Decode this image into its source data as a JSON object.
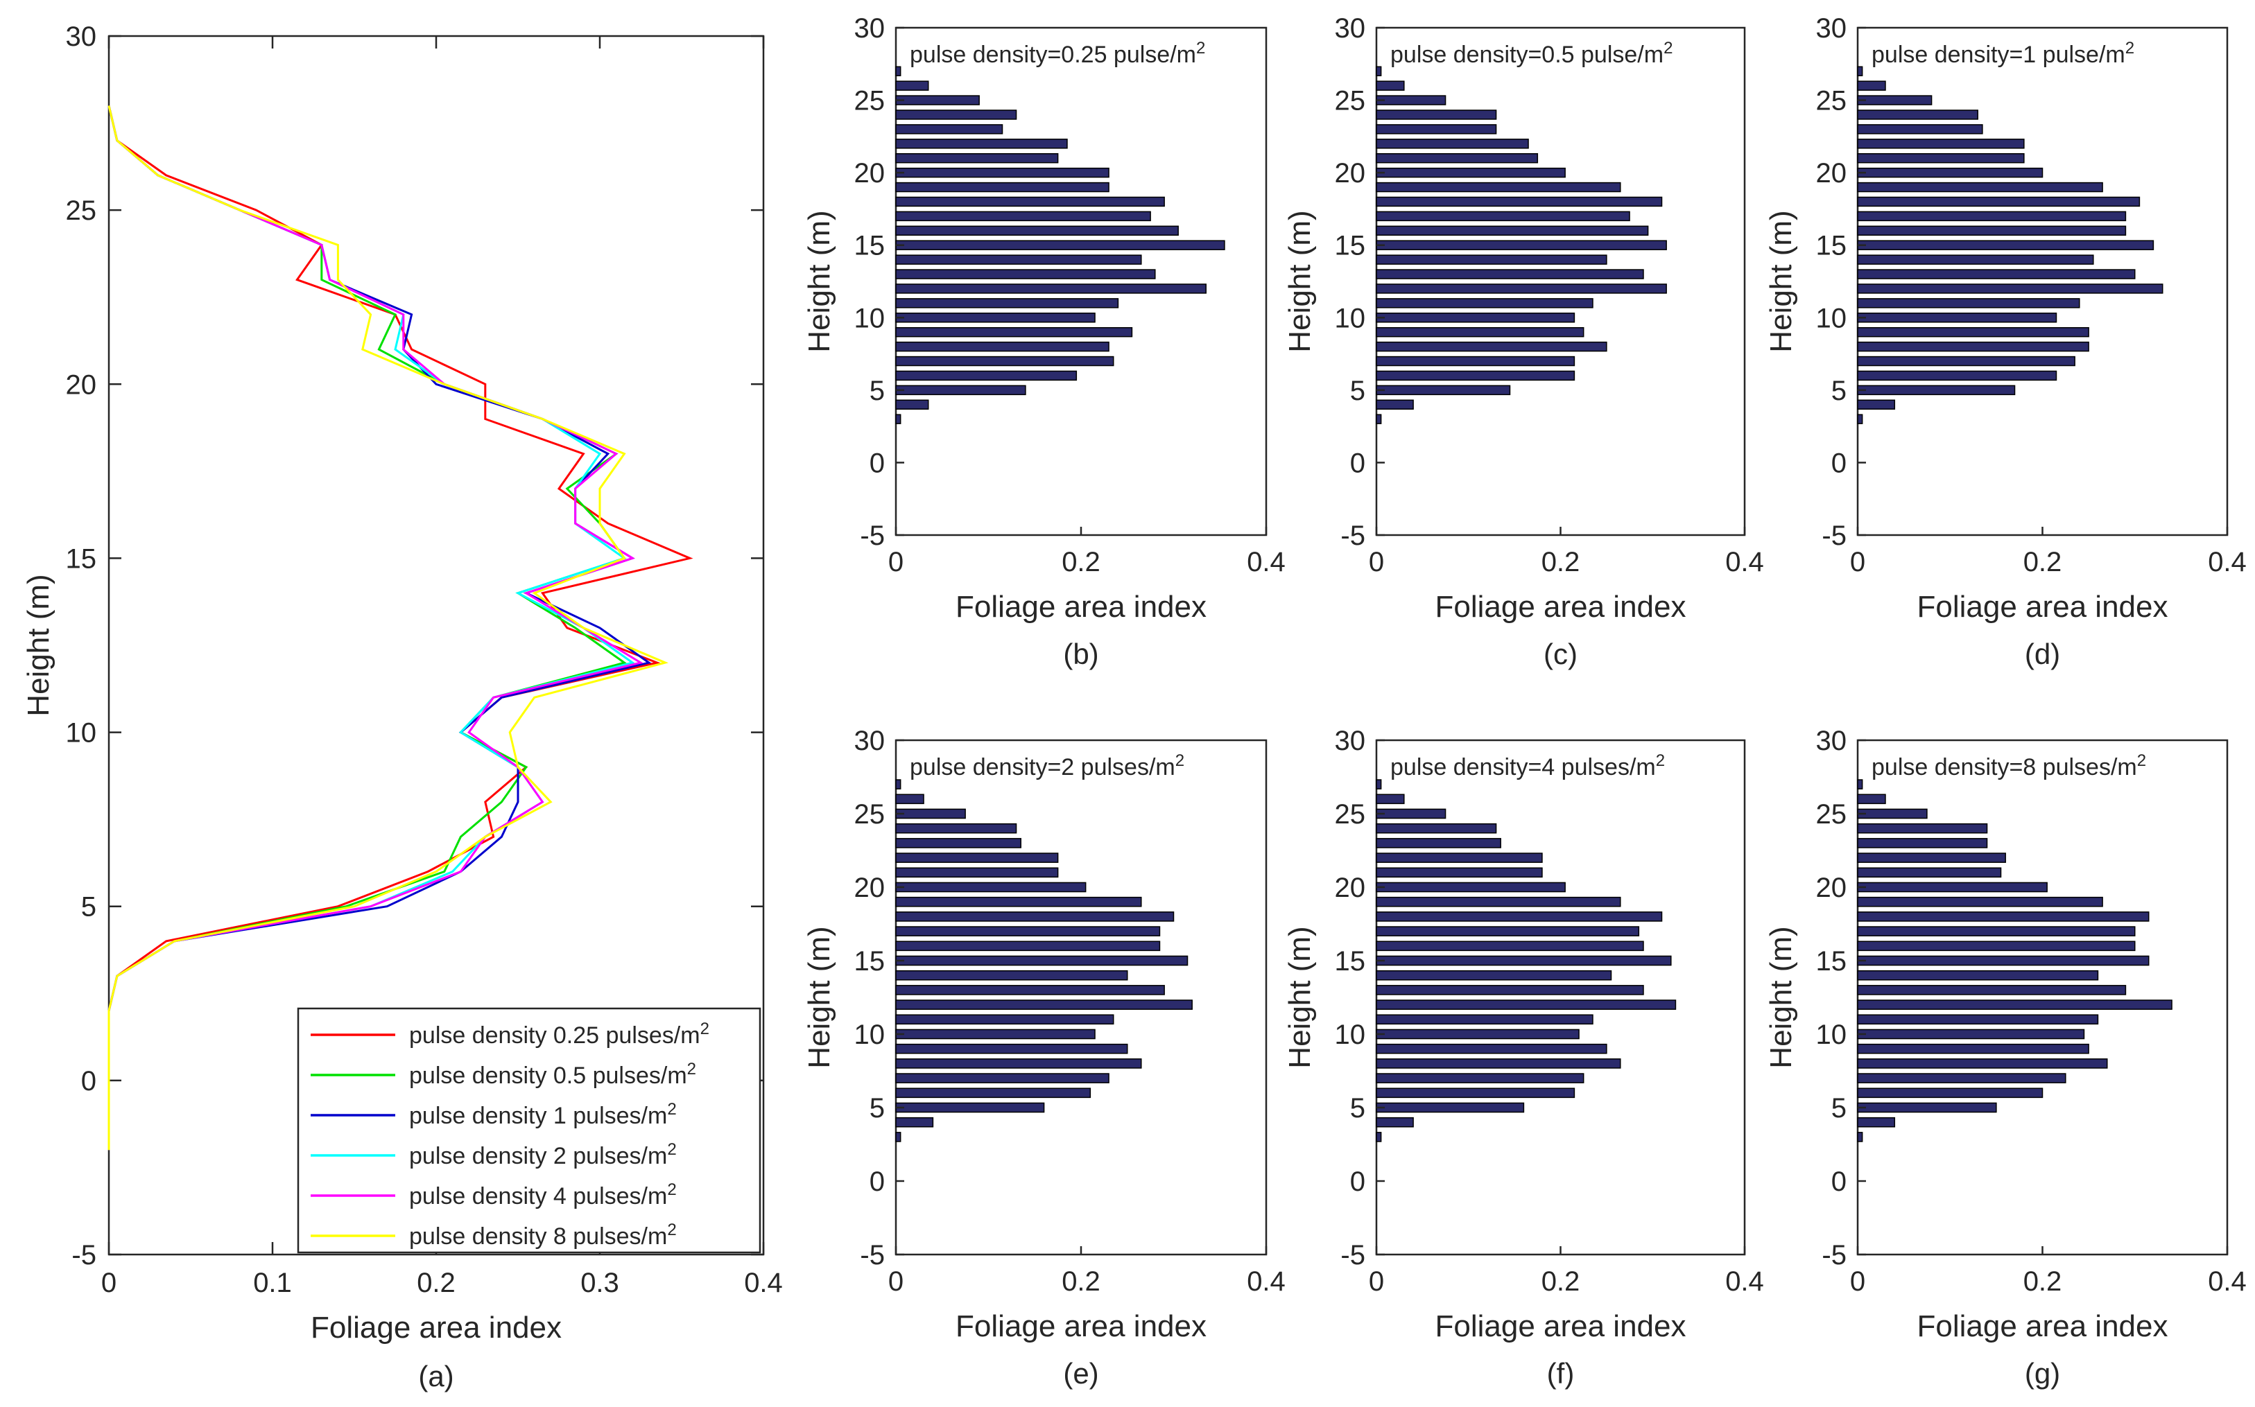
{
  "chart_data": [
    {
      "panel": "(a)",
      "type": "line",
      "xlabel": "Foliage area index",
      "ylabel": "Height (m)",
      "xlim": [
        0,
        0.4
      ],
      "ylim": [
        -5,
        30
      ],
      "xticks": [
        "0",
        "0.1",
        "0.2",
        "0.3",
        "0.4"
      ],
      "yticks": [
        "-5",
        "0",
        "5",
        "10",
        "15",
        "20",
        "25",
        "30"
      ],
      "legend_position": "bottom-right",
      "y": [
        -2,
        -1,
        0,
        1,
        2,
        3,
        4,
        5,
        6,
        7,
        8,
        9,
        10,
        11,
        12,
        13,
        14,
        15,
        16,
        17,
        18,
        19,
        20,
        21,
        22,
        23,
        24,
        25,
        26,
        27,
        28
      ],
      "series": [
        {
          "name": "pulse density 0.25 pulses/m²",
          "color": "#ff0000",
          "values": [
            0,
            0,
            0,
            0,
            0,
            0.005,
            0.035,
            0.14,
            0.195,
            0.235,
            0.23,
            0.255,
            0.215,
            0.24,
            0.335,
            0.28,
            0.265,
            0.355,
            0.305,
            0.275,
            0.29,
            0.23,
            0.23,
            0.185,
            0.175,
            0.115,
            0.13,
            0.09,
            0.035,
            0.005,
            0
          ]
        },
        {
          "name": "pulse density 0.5 pulses/m²",
          "color": "#00e000",
          "values": [
            0,
            0,
            0,
            0,
            0,
            0.005,
            0.04,
            0.145,
            0.205,
            0.215,
            0.24,
            0.255,
            0.215,
            0.235,
            0.315,
            0.285,
            0.25,
            0.315,
            0.3,
            0.28,
            0.31,
            0.265,
            0.205,
            0.165,
            0.175,
            0.13,
            0.13,
            0.08,
            0.03,
            0.005,
            0
          ]
        },
        {
          "name": "pulse density 1 pulses/m²",
          "color": "#0000cc",
          "values": [
            0,
            0,
            0,
            0,
            0,
            0.005,
            0.04,
            0.17,
            0.215,
            0.24,
            0.25,
            0.25,
            0.215,
            0.24,
            0.33,
            0.3,
            0.255,
            0.32,
            0.285,
            0.285,
            0.305,
            0.265,
            0.2,
            0.18,
            0.185,
            0.135,
            0.13,
            0.08,
            0.03,
            0.005,
            0
          ]
        },
        {
          "name": "pulse density 2 pulses/m²",
          "color": "#00ffff",
          "values": [
            0,
            0,
            0,
            0,
            0,
            0.005,
            0.04,
            0.16,
            0.21,
            0.23,
            0.265,
            0.25,
            0.215,
            0.235,
            0.32,
            0.29,
            0.25,
            0.315,
            0.285,
            0.285,
            0.3,
            0.265,
            0.205,
            0.175,
            0.18,
            0.135,
            0.13,
            0.08,
            0.03,
            0.005,
            0
          ]
        },
        {
          "name": "pulse density 4 pulses/m²",
          "color": "#ff00ff",
          "values": [
            0,
            0,
            0,
            0,
            0,
            0.005,
            0.04,
            0.16,
            0.215,
            0.23,
            0.265,
            0.25,
            0.22,
            0.235,
            0.325,
            0.29,
            0.255,
            0.32,
            0.285,
            0.285,
            0.31,
            0.265,
            0.205,
            0.18,
            0.18,
            0.135,
            0.13,
            0.08,
            0.03,
            0.005,
            0
          ]
        },
        {
          "name": "pulse density 8 pulses/m²",
          "color": "#ffff00",
          "values": [
            0,
            0,
            0,
            0,
            0,
            0.005,
            0.04,
            0.15,
            0.2,
            0.23,
            0.27,
            0.25,
            0.245,
            0.26,
            0.34,
            0.29,
            0.26,
            0.315,
            0.3,
            0.3,
            0.315,
            0.265,
            0.205,
            0.155,
            0.16,
            0.14,
            0.14,
            0.08,
            0.03,
            0.005,
            0
          ]
        }
      ]
    },
    {
      "panel": "(b)",
      "type": "bar",
      "orientation": "horizontal",
      "title": "pulse density=0.25 pulse/m²",
      "xlabel": "Foliage area index",
      "ylabel": "Height (m)",
      "xlim": [
        0,
        0.4
      ],
      "ylim": [
        -5,
        30
      ],
      "xticks": [
        "0",
        "0.2",
        "0.4"
      ],
      "yticks": [
        "-5",
        "0",
        "5",
        "10",
        "15",
        "20",
        "25",
        "30"
      ],
      "bar_color": "#2b2b6b",
      "heights": [
        3,
        4,
        5,
        6,
        7,
        8,
        9,
        10,
        11,
        12,
        13,
        14,
        15,
        16,
        17,
        18,
        19,
        20,
        21,
        22,
        23,
        24,
        25,
        26,
        27
      ],
      "values": [
        0.005,
        0.035,
        0.14,
        0.195,
        0.235,
        0.23,
        0.255,
        0.215,
        0.24,
        0.335,
        0.28,
        0.265,
        0.355,
        0.305,
        0.275,
        0.29,
        0.23,
        0.23,
        0.175,
        0.185,
        0.115,
        0.13,
        0.09,
        0.035,
        0.005
      ]
    },
    {
      "panel": "(c)",
      "type": "bar",
      "orientation": "horizontal",
      "title": "pulse density=0.5 pulse/m²",
      "xlabel": "Foliage area index",
      "ylabel": "Height (m)",
      "xlim": [
        0,
        0.4
      ],
      "ylim": [
        -5,
        30
      ],
      "xticks": [
        "0",
        "0.2",
        "0.4"
      ],
      "yticks": [
        "-5",
        "0",
        "5",
        "10",
        "15",
        "20",
        "25",
        "30"
      ],
      "bar_color": "#2b2b6b",
      "heights": [
        3,
        4,
        5,
        6,
        7,
        8,
        9,
        10,
        11,
        12,
        13,
        14,
        15,
        16,
        17,
        18,
        19,
        20,
        21,
        22,
        23,
        24,
        25,
        26,
        27
      ],
      "values": [
        0.005,
        0.04,
        0.145,
        0.215,
        0.215,
        0.25,
        0.225,
        0.215,
        0.235,
        0.315,
        0.29,
        0.25,
        0.315,
        0.295,
        0.275,
        0.31,
        0.265,
        0.205,
        0.175,
        0.165,
        0.13,
        0.13,
        0.075,
        0.03,
        0.005
      ]
    },
    {
      "panel": "(d)",
      "type": "bar",
      "orientation": "horizontal",
      "title": "pulse density=1 pulse/m²",
      "xlabel": "Foliage area index",
      "ylabel": "Height (m)",
      "xlim": [
        0,
        0.4
      ],
      "ylim": [
        -5,
        30
      ],
      "xticks": [
        "0",
        "0.2",
        "0.4"
      ],
      "yticks": [
        "-5",
        "0",
        "5",
        "10",
        "15",
        "20",
        "25",
        "30"
      ],
      "bar_color": "#2b2b6b",
      "heights": [
        3,
        4,
        5,
        6,
        7,
        8,
        9,
        10,
        11,
        12,
        13,
        14,
        15,
        16,
        17,
        18,
        19,
        20,
        21,
        22,
        23,
        24,
        25,
        26,
        27
      ],
      "values": [
        0.005,
        0.04,
        0.17,
        0.215,
        0.235,
        0.25,
        0.25,
        0.215,
        0.24,
        0.33,
        0.3,
        0.255,
        0.32,
        0.29,
        0.29,
        0.305,
        0.265,
        0.2,
        0.18,
        0.18,
        0.135,
        0.13,
        0.08,
        0.03,
        0.005
      ]
    },
    {
      "panel": "(e)",
      "type": "bar",
      "orientation": "horizontal",
      "title": "pulse density=2 pulses/m²",
      "xlabel": "Foliage area index",
      "ylabel": "Height (m)",
      "xlim": [
        0,
        0.4
      ],
      "ylim": [
        -5,
        30
      ],
      "xticks": [
        "0",
        "0.2",
        "0.4"
      ],
      "yticks": [
        "-5",
        "0",
        "5",
        "10",
        "15",
        "20",
        "25",
        "30"
      ],
      "bar_color": "#2b2b6b",
      "heights": [
        3,
        4,
        5,
        6,
        7,
        8,
        9,
        10,
        11,
        12,
        13,
        14,
        15,
        16,
        17,
        18,
        19,
        20,
        21,
        22,
        23,
        24,
        25,
        26,
        27
      ],
      "values": [
        0.005,
        0.04,
        0.16,
        0.21,
        0.23,
        0.265,
        0.25,
        0.215,
        0.235,
        0.32,
        0.29,
        0.25,
        0.315,
        0.285,
        0.285,
        0.3,
        0.265,
        0.205,
        0.175,
        0.175,
        0.135,
        0.13,
        0.075,
        0.03,
        0.005
      ]
    },
    {
      "panel": "(f)",
      "type": "bar",
      "orientation": "horizontal",
      "title": "pulse density=4 pulses/m²",
      "xlabel": "Foliage area index",
      "ylabel": "Height (m)",
      "xlim": [
        0,
        0.4
      ],
      "ylim": [
        -5,
        30
      ],
      "xticks": [
        "0",
        "0.2",
        "0.4"
      ],
      "yticks": [
        "-5",
        "0",
        "5",
        "10",
        "15",
        "20",
        "25",
        "30"
      ],
      "bar_color": "#2b2b6b",
      "heights": [
        3,
        4,
        5,
        6,
        7,
        8,
        9,
        10,
        11,
        12,
        13,
        14,
        15,
        16,
        17,
        18,
        19,
        20,
        21,
        22,
        23,
        24,
        25,
        26,
        27
      ],
      "values": [
        0.005,
        0.04,
        0.16,
        0.215,
        0.225,
        0.265,
        0.25,
        0.22,
        0.235,
        0.325,
        0.29,
        0.255,
        0.32,
        0.29,
        0.285,
        0.31,
        0.265,
        0.205,
        0.18,
        0.18,
        0.135,
        0.13,
        0.075,
        0.03,
        0.005
      ]
    },
    {
      "panel": "(g)",
      "type": "bar",
      "orientation": "horizontal",
      "title": "pulse density=8 pulses/m²",
      "xlabel": "Foliage area index",
      "ylabel": "Height (m)",
      "xlim": [
        0,
        0.4
      ],
      "ylim": [
        -5,
        30
      ],
      "xticks": [
        "0",
        "0.2",
        "0.4"
      ],
      "yticks": [
        "-5",
        "0",
        "5",
        "10",
        "15",
        "20",
        "25",
        "30"
      ],
      "bar_color": "#2b2b6b",
      "heights": [
        3,
        4,
        5,
        6,
        7,
        8,
        9,
        10,
        11,
        12,
        13,
        14,
        15,
        16,
        17,
        18,
        19,
        20,
        21,
        22,
        23,
        24,
        25,
        26,
        27
      ],
      "values": [
        0.005,
        0.04,
        0.15,
        0.2,
        0.225,
        0.27,
        0.25,
        0.245,
        0.26,
        0.34,
        0.29,
        0.26,
        0.315,
        0.3,
        0.3,
        0.315,
        0.265,
        0.205,
        0.155,
        0.16,
        0.14,
        0.14,
        0.075,
        0.03,
        0.005
      ]
    }
  ]
}
